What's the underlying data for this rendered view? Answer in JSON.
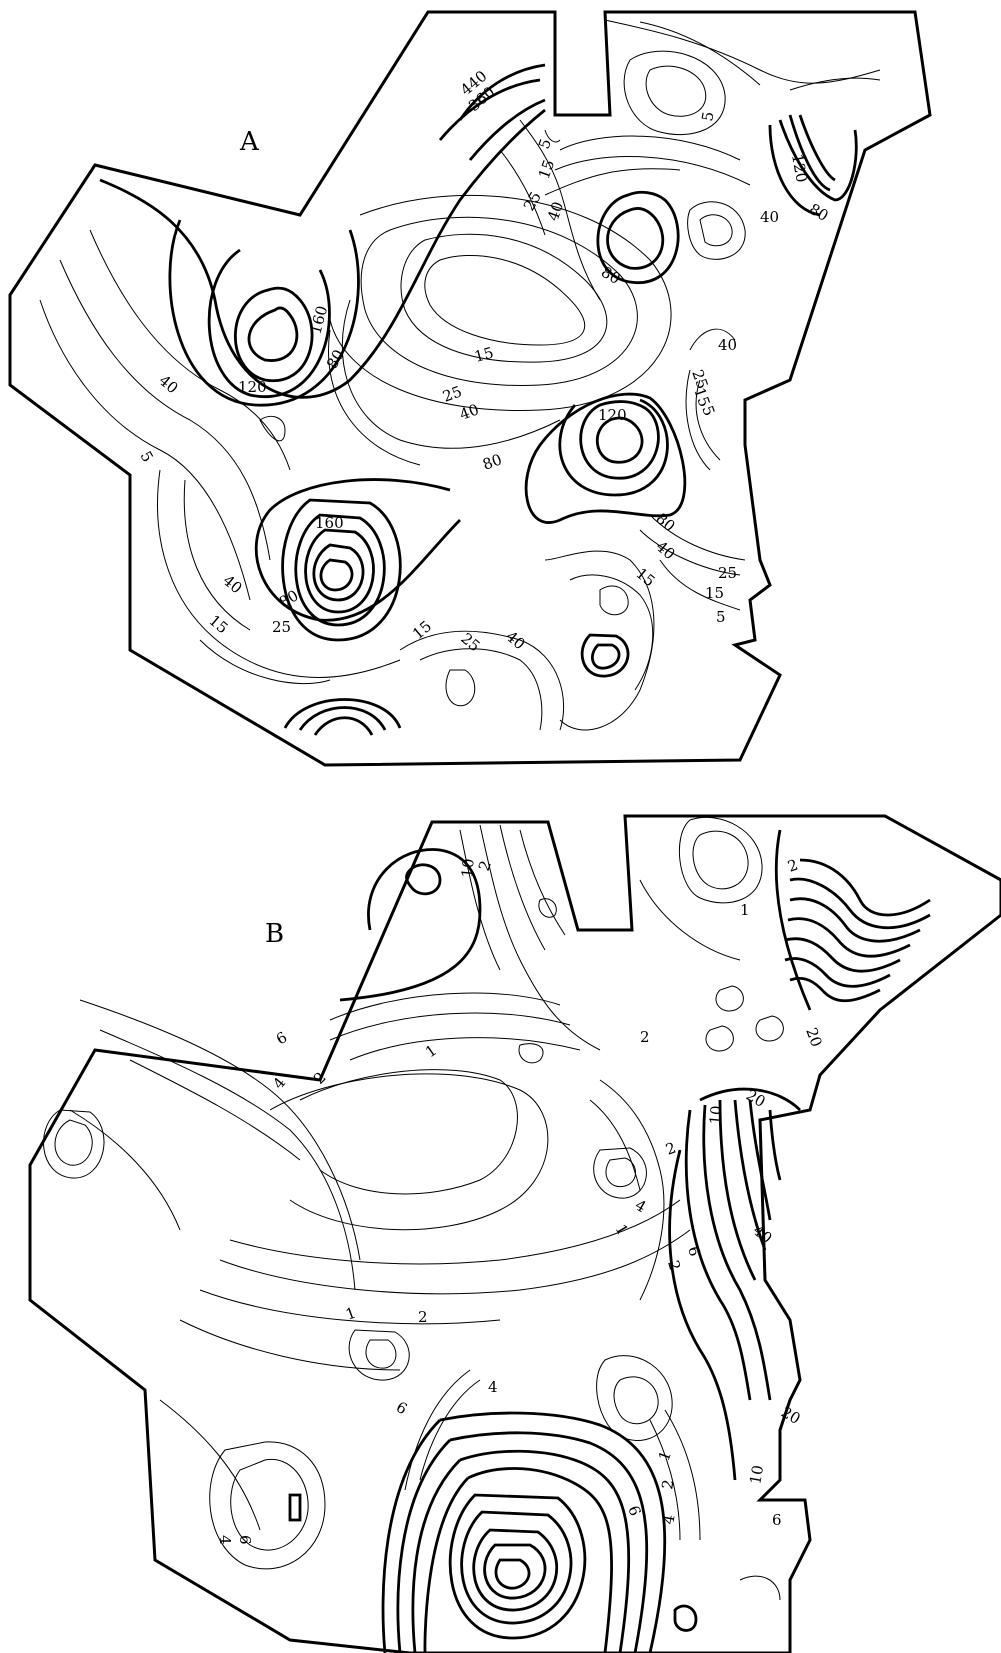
{
  "panels": [
    {
      "letter": "A",
      "contour_labels": [
        "440",
        "360",
        "5",
        "15",
        "25",
        "40",
        "5",
        "120",
        "80",
        "40",
        "80",
        "160",
        "120",
        "80",
        "40",
        "5",
        "15",
        "25",
        "40",
        "40",
        "25",
        "15",
        "5",
        "120",
        "80",
        "80",
        "40",
        "15",
        "25",
        "15",
        "5",
        "160",
        "40",
        "80",
        "15",
        "25",
        "15",
        "25",
        "40"
      ]
    },
    {
      "letter": "B",
      "contour_labels": [
        "10",
        "2",
        "1",
        "6",
        "4",
        "2",
        "1",
        "2",
        "2",
        "20",
        "20",
        "10",
        "2",
        "4",
        "1",
        "2",
        "6",
        "40",
        "1",
        "2",
        "4",
        "6",
        "20",
        "10",
        "6",
        "4",
        "6",
        "2",
        "1",
        "4",
        "6"
      ]
    }
  ],
  "colors": {
    "ink": "#000000",
    "paper": "#ffffff"
  }
}
